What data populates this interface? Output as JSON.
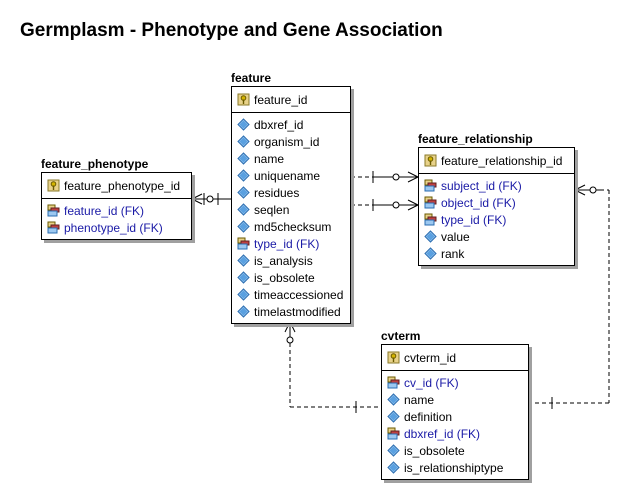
{
  "title": "Germplasm - Phenotype and Gene Association",
  "entities": {
    "feature": {
      "name": "feature",
      "pk": "feature_id",
      "attrs": [
        {
          "label": "dbxref_id",
          "fk": false
        },
        {
          "label": "organism_id",
          "fk": false
        },
        {
          "label": "name",
          "fk": false
        },
        {
          "label": "uniquename",
          "fk": false
        },
        {
          "label": "residues",
          "fk": false
        },
        {
          "label": "seqlen",
          "fk": false
        },
        {
          "label": "md5checksum",
          "fk": false
        },
        {
          "label": "type_id (FK)",
          "fk": true
        },
        {
          "label": "is_analysis",
          "fk": false
        },
        {
          "label": "is_obsolete",
          "fk": false
        },
        {
          "label": "timeaccessioned",
          "fk": false
        },
        {
          "label": "timelastmodified",
          "fk": false
        }
      ]
    },
    "feature_phenotype": {
      "name": "feature_phenotype",
      "pk": "feature_phenotype_id",
      "attrs": [
        {
          "label": "feature_id (FK)",
          "fk": true
        },
        {
          "label": "phenotype_id (FK)",
          "fk": true
        }
      ]
    },
    "feature_relationship": {
      "name": "feature_relationship",
      "pk": "feature_relationship_id",
      "attrs": [
        {
          "label": "subject_id (FK)",
          "fk": true
        },
        {
          "label": "object_id (FK)",
          "fk": true
        },
        {
          "label": "type_id (FK)",
          "fk": true
        },
        {
          "label": "value",
          "fk": false
        },
        {
          "label": "rank",
          "fk": false
        }
      ]
    },
    "cvterm": {
      "name": "cvterm",
      "pk": "cvterm_id",
      "attrs": [
        {
          "label": "cv_id (FK)",
          "fk": true
        },
        {
          "label": "name",
          "fk": false
        },
        {
          "label": "definition",
          "fk": false
        },
        {
          "label": "dbxref_id (FK)",
          "fk": true
        },
        {
          "label": "is_obsolete",
          "fk": false
        },
        {
          "label": "is_relationshiptype",
          "fk": false
        }
      ]
    }
  },
  "colors": {
    "fk_text": "#1a1aa6",
    "key_icon": "#d4b400",
    "attr_icon": "#5aa0e0"
  }
}
